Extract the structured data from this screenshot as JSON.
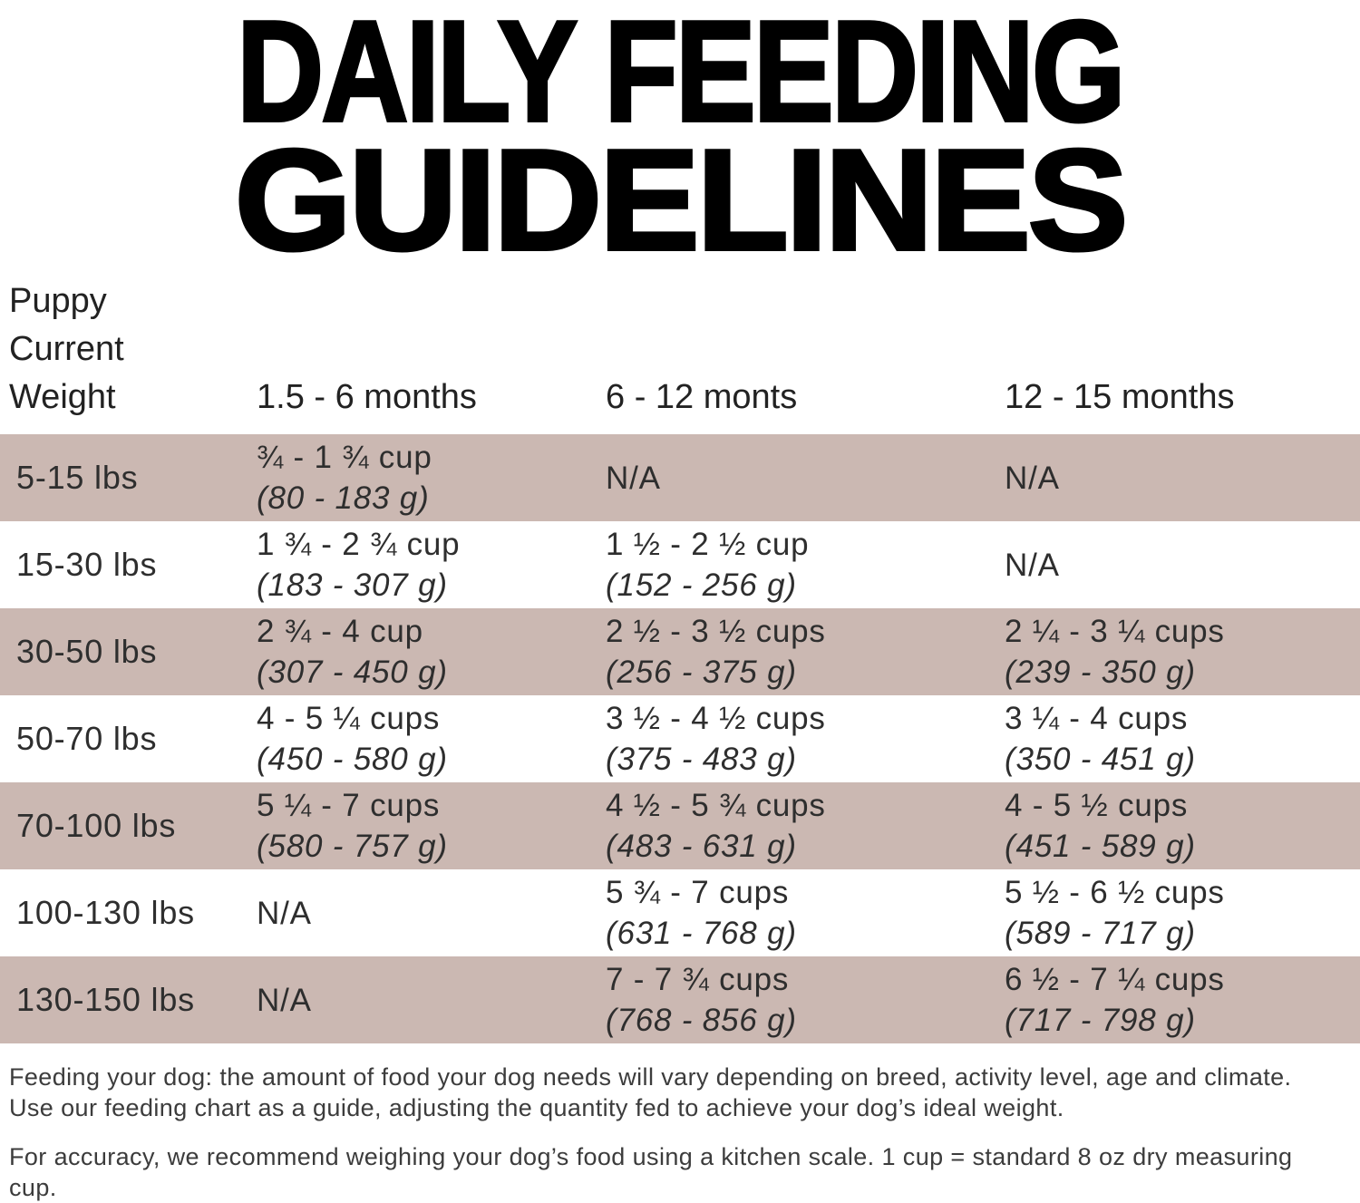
{
  "title": {
    "line1": "DAILY FEEDING",
    "line2": "GUIDELINES"
  },
  "table": {
    "corner_label_lines": [
      "Puppy",
      "Current",
      "Weight"
    ],
    "columns": [
      "1.5 - 6 months",
      "6 - 12 monts",
      "12 - 15 months"
    ],
    "rows": [
      {
        "weight": "5-15 lbs",
        "cols": [
          {
            "cups": "¾ - 1 ¾ cup",
            "grams": "(80 - 183 g)"
          },
          {
            "cups": "N/A",
            "grams": ""
          },
          {
            "cups": "N/A",
            "grams": ""
          }
        ]
      },
      {
        "weight": "15-30 lbs",
        "cols": [
          {
            "cups": "1 ¾ - 2 ¾ cup",
            "grams": "(183 - 307 g)"
          },
          {
            "cups": "1 ½ - 2 ½ cup",
            "grams": "(152 - 256 g)"
          },
          {
            "cups": "N/A",
            "grams": ""
          }
        ]
      },
      {
        "weight": "30-50 lbs",
        "cols": [
          {
            "cups": "2 ¾ - 4 cup",
            "grams": "(307 - 450 g)"
          },
          {
            "cups": "2 ½ - 3 ½ cups",
            "grams": "(256 - 375 g)"
          },
          {
            "cups": "2 ¼ - 3 ¼ cups",
            "grams": "(239 - 350 g)"
          }
        ]
      },
      {
        "weight": "50-70 lbs",
        "cols": [
          {
            "cups": "4 - 5 ¼ cups",
            "grams": "(450 - 580 g)"
          },
          {
            "cups": "3 ½ - 4 ½ cups",
            "grams": "(375 - 483 g)"
          },
          {
            "cups": "3 ¼ - 4 cups",
            "grams": "(350 - 451 g)"
          }
        ]
      },
      {
        "weight": "70-100 lbs",
        "cols": [
          {
            "cups": "5 ¼ - 7 cups",
            "grams": "(580 - 757 g)"
          },
          {
            "cups": "4 ½ - 5 ¾ cups",
            "grams": "(483 - 631 g)"
          },
          {
            "cups": "4 - 5 ½ cups",
            "grams": "(451 - 589 g)"
          }
        ]
      },
      {
        "weight": "100-130 lbs",
        "cols": [
          {
            "cups": "N/A",
            "grams": ""
          },
          {
            "cups": "5 ¾ - 7 cups",
            "grams": "(631 - 768 g)"
          },
          {
            "cups": "5 ½ - 6 ½ cups",
            "grams": "(589 - 717 g)"
          }
        ]
      },
      {
        "weight": "130-150 lbs",
        "cols": [
          {
            "cups": "N/A",
            "grams": ""
          },
          {
            "cups": "7 - 7 ¾ cups",
            "grams": "(768 - 856 g)"
          },
          {
            "cups": "6 ½ - 7 ¼ cups",
            "grams": "(717 - 798 g)"
          }
        ]
      }
    ]
  },
  "notes": {
    "paragraph1": "Feeding your dog: the amount of food your dog needs will vary depending on breed, activity level, age and climate. Use our feeding chart as a guide, adjusting the quantity fed to achieve your dog’s ideal weight.",
    "paragraph2": "For accuracy, we recommend weighing your dog’s food using a kitchen scale. 1 cup = standard 8 oz dry measuring cup."
  },
  "colors": {
    "row_shade": "#cbb8b2",
    "text": "#2e2e2e"
  }
}
